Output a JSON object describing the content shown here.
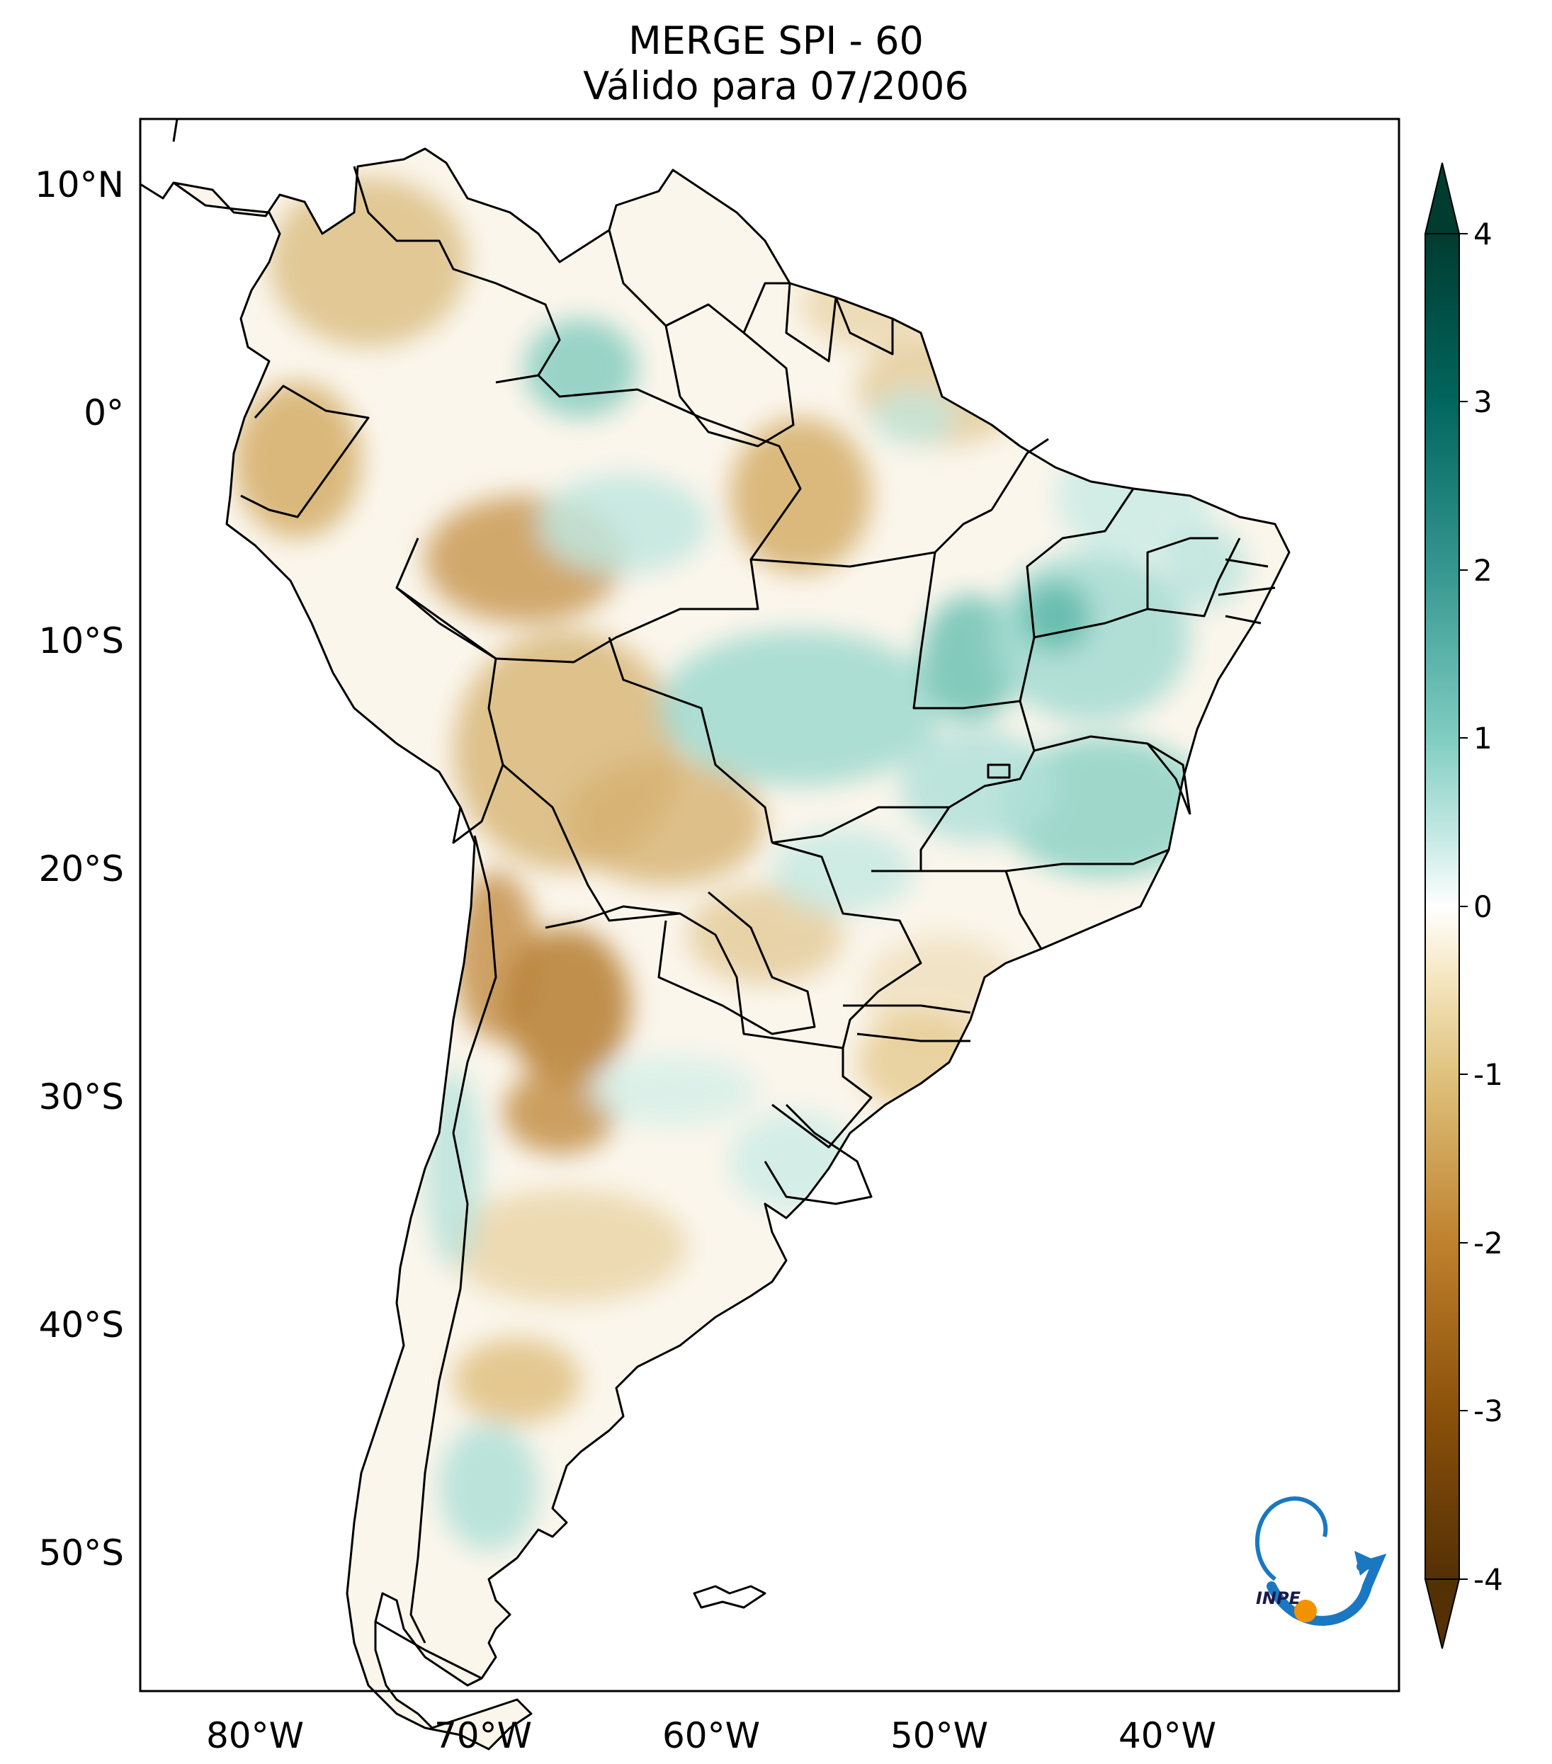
{
  "title": {
    "line1": "MERGE   SPI - 60",
    "line2": "Válido para 07/2006"
  },
  "map": {
    "lon_range": [
      -85,
      -30
    ],
    "lat_range": [
      -56,
      13
    ],
    "lat_ticks": [
      "10°N",
      "0°",
      "10°S",
      "20°S",
      "30°S",
      "40°S",
      "50°S"
    ],
    "lon_ticks": [
      "80°W",
      "70°W",
      "60°W",
      "50°W",
      "40°W"
    ],
    "field": "SPI-60 index over South America",
    "outline_color": "#000000"
  },
  "colorbar": {
    "ticks": [
      "4",
      "3",
      "2",
      "1",
      "0",
      "-1",
      "-2",
      "-3",
      "-4"
    ],
    "range": [
      -4,
      4
    ],
    "extend": "both",
    "colors": {
      "min": "#543005",
      "dry_strong": "#8c510a",
      "dry_mid": "#bf812d",
      "dry_light": "#dfc27d",
      "dry_pale": "#f6e8c3",
      "neutral": "#ffffff",
      "wet_pale": "#c7eae5",
      "wet_light": "#80cdc1",
      "wet_mid": "#35978f",
      "wet_strong": "#01665e",
      "max": "#003c30"
    }
  },
  "logo": {
    "text": "INPE",
    "colors": {
      "blue": "#1a78c2",
      "orange": "#f39200"
    }
  }
}
